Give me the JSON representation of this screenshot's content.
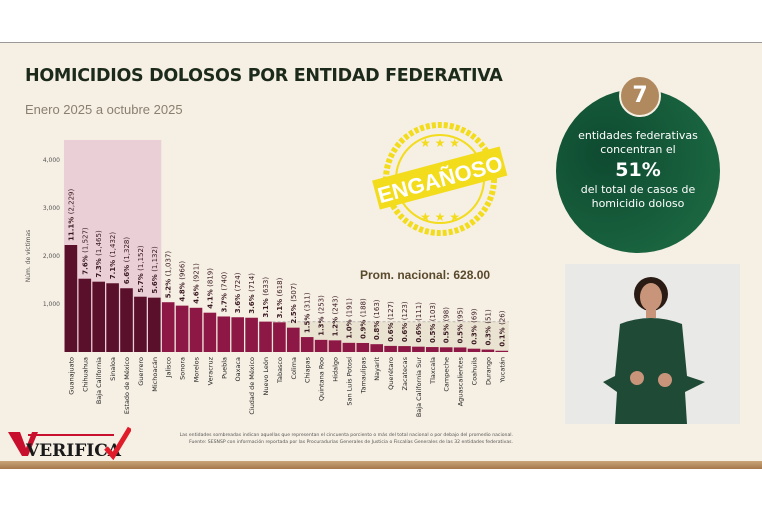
{
  "header": {
    "title": "HOMICIDIOS DOLOSOS POR ENTIDAD FEDERATIVA",
    "subtitle": "Enero 2025 a octubre 2025"
  },
  "stamp": {
    "text": "ENGAÑOSO",
    "color": "#f2dc1c"
  },
  "callout": {
    "number": "7",
    "line1": "entidades federativas concentran el",
    "percent": "51%",
    "line2": "del total de casos de homicidio doloso"
  },
  "average_label": "Prom. nacional: 628.00",
  "footer": {
    "note": "Las entidades sombreadas indican aquellas que representan el cincuenta porciento o más del total nacional o por debajo del promedio nacional.",
    "source": "Fuente: SESNSP con información reportada por las Procuradurías Generales de Justicia o Fiscalías Generales de las 32 entidades federativas.",
    "logo": "VERIFICA"
  },
  "colors": {
    "highlight_bar": "#5a0f2a",
    "bar": "#8e1845",
    "highlight_band": "#ead0d6",
    "below_avg_band": "#ebe3d2",
    "circle": "#155c3a",
    "badge": "#b08a5e"
  },
  "chart_data": {
    "type": "bar",
    "ylabel": "Núm. de víctimas",
    "ylim": [
      0,
      4300
    ],
    "yticks": [
      "1,000",
      "2,000",
      "3,000",
      "4,000"
    ],
    "average": 628,
    "categories": [
      "Guanajuato",
      "Chihuahua",
      "Baja California",
      "Sinaloa",
      "Estado de México",
      "Guerrero",
      "Michoacán",
      "Jalisco",
      "Sonora",
      "Morelos",
      "Veracruz",
      "Puebla",
      "Oaxaca",
      "Ciudad de México",
      "Nuevo León",
      "Tabasco",
      "Colima",
      "Chiapas",
      "Quintana Roo",
      "Hidalgo",
      "San Luis Potosí",
      "Tamaulipas",
      "Nayarit",
      "Querétaro",
      "Zacatecas",
      "Baja California Sur",
      "Tlaxcala",
      "Campeche",
      "Aguascalientes",
      "Coahuila",
      "Durango",
      "Yucatán"
    ],
    "values": [
      2229,
      1527,
      1465,
      1432,
      1328,
      1152,
      1132,
      1037,
      966,
      921,
      819,
      740,
      724,
      714,
      633,
      618,
      507,
      311,
      253,
      243,
      191,
      188,
      163,
      127,
      123,
      111,
      103,
      98,
      95,
      69,
      51,
      26
    ],
    "percents": [
      "11.1%",
      "7.6%",
      "7.3%",
      "7.1%",
      "6.6%",
      "5.7%",
      "5.6%",
      "5.2%",
      "4.8%",
      "4.6%",
      "4.1%",
      "3.7%",
      "3.6%",
      "3.6%",
      "3.1%",
      "3.1%",
      "2.5%",
      "1.5%",
      "1.3%",
      "1.2%",
      "1.0%",
      "0.9%",
      "0.8%",
      "0.6%",
      "0.6%",
      "0.6%",
      "0.5%",
      "0.5%",
      "0.5%",
      "0.3%",
      "0.3%",
      "0.1%"
    ],
    "highlighted_count": 7,
    "grid": false,
    "legend": "none"
  }
}
